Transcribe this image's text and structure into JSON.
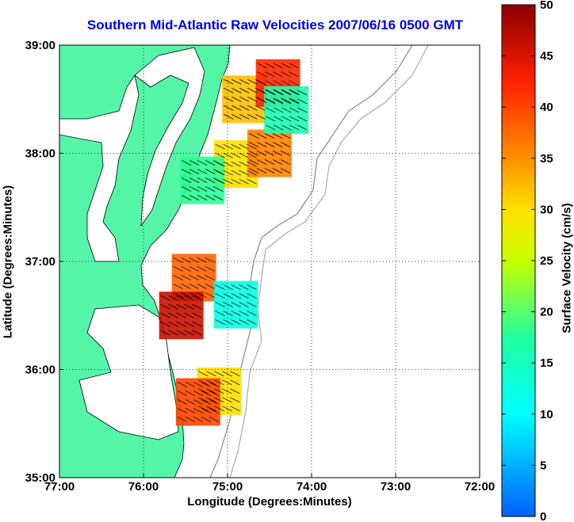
{
  "chart_data": {
    "type": "heatmap",
    "title": "Southern Mid-Atlantic Raw Velocities 2007/06/16 0500 GMT",
    "xlabel": "Longitude (Degrees:Minutes)",
    "ylabel": "Latitude (Degrees:Minutes)",
    "colorbar_label": "Surface Velocity (cm/s)",
    "xlim": [
      -77,
      -72
    ],
    "ylim": [
      35,
      39
    ],
    "x_ticks": [
      "77:00",
      "76:00",
      "75:00",
      "74:00",
      "73:00",
      "72:00"
    ],
    "y_ticks": [
      "39:00",
      "38:00",
      "37:00",
      "36:00",
      "35:00"
    ],
    "colorbar_ticks": [
      "50",
      "45",
      "40",
      "35",
      "30",
      "25",
      "20",
      "15",
      "10",
      "5",
      "0"
    ],
    "clim": [
      0,
      50
    ],
    "grid": true,
    "regions": [
      {
        "lon": -74.8,
        "lat": 38.5,
        "value": 32
      },
      {
        "lon": -74.4,
        "lat": 38.65,
        "value": 42
      },
      {
        "lon": -74.9,
        "lat": 37.9,
        "value": 30
      },
      {
        "lon": -74.5,
        "lat": 38.0,
        "value": 36
      },
      {
        "lon": -74.3,
        "lat": 38.4,
        "value": 16
      },
      {
        "lon": -75.3,
        "lat": 37.75,
        "value": 18
      },
      {
        "lon": -75.4,
        "lat": 36.85,
        "value": 38
      },
      {
        "lon": -74.9,
        "lat": 36.6,
        "value": 12
      },
      {
        "lon": -75.55,
        "lat": 36.5,
        "value": 46
      },
      {
        "lon": -75.1,
        "lat": 35.8,
        "value": 30
      },
      {
        "lon": -75.35,
        "lat": 35.7,
        "value": 40
      }
    ]
  }
}
